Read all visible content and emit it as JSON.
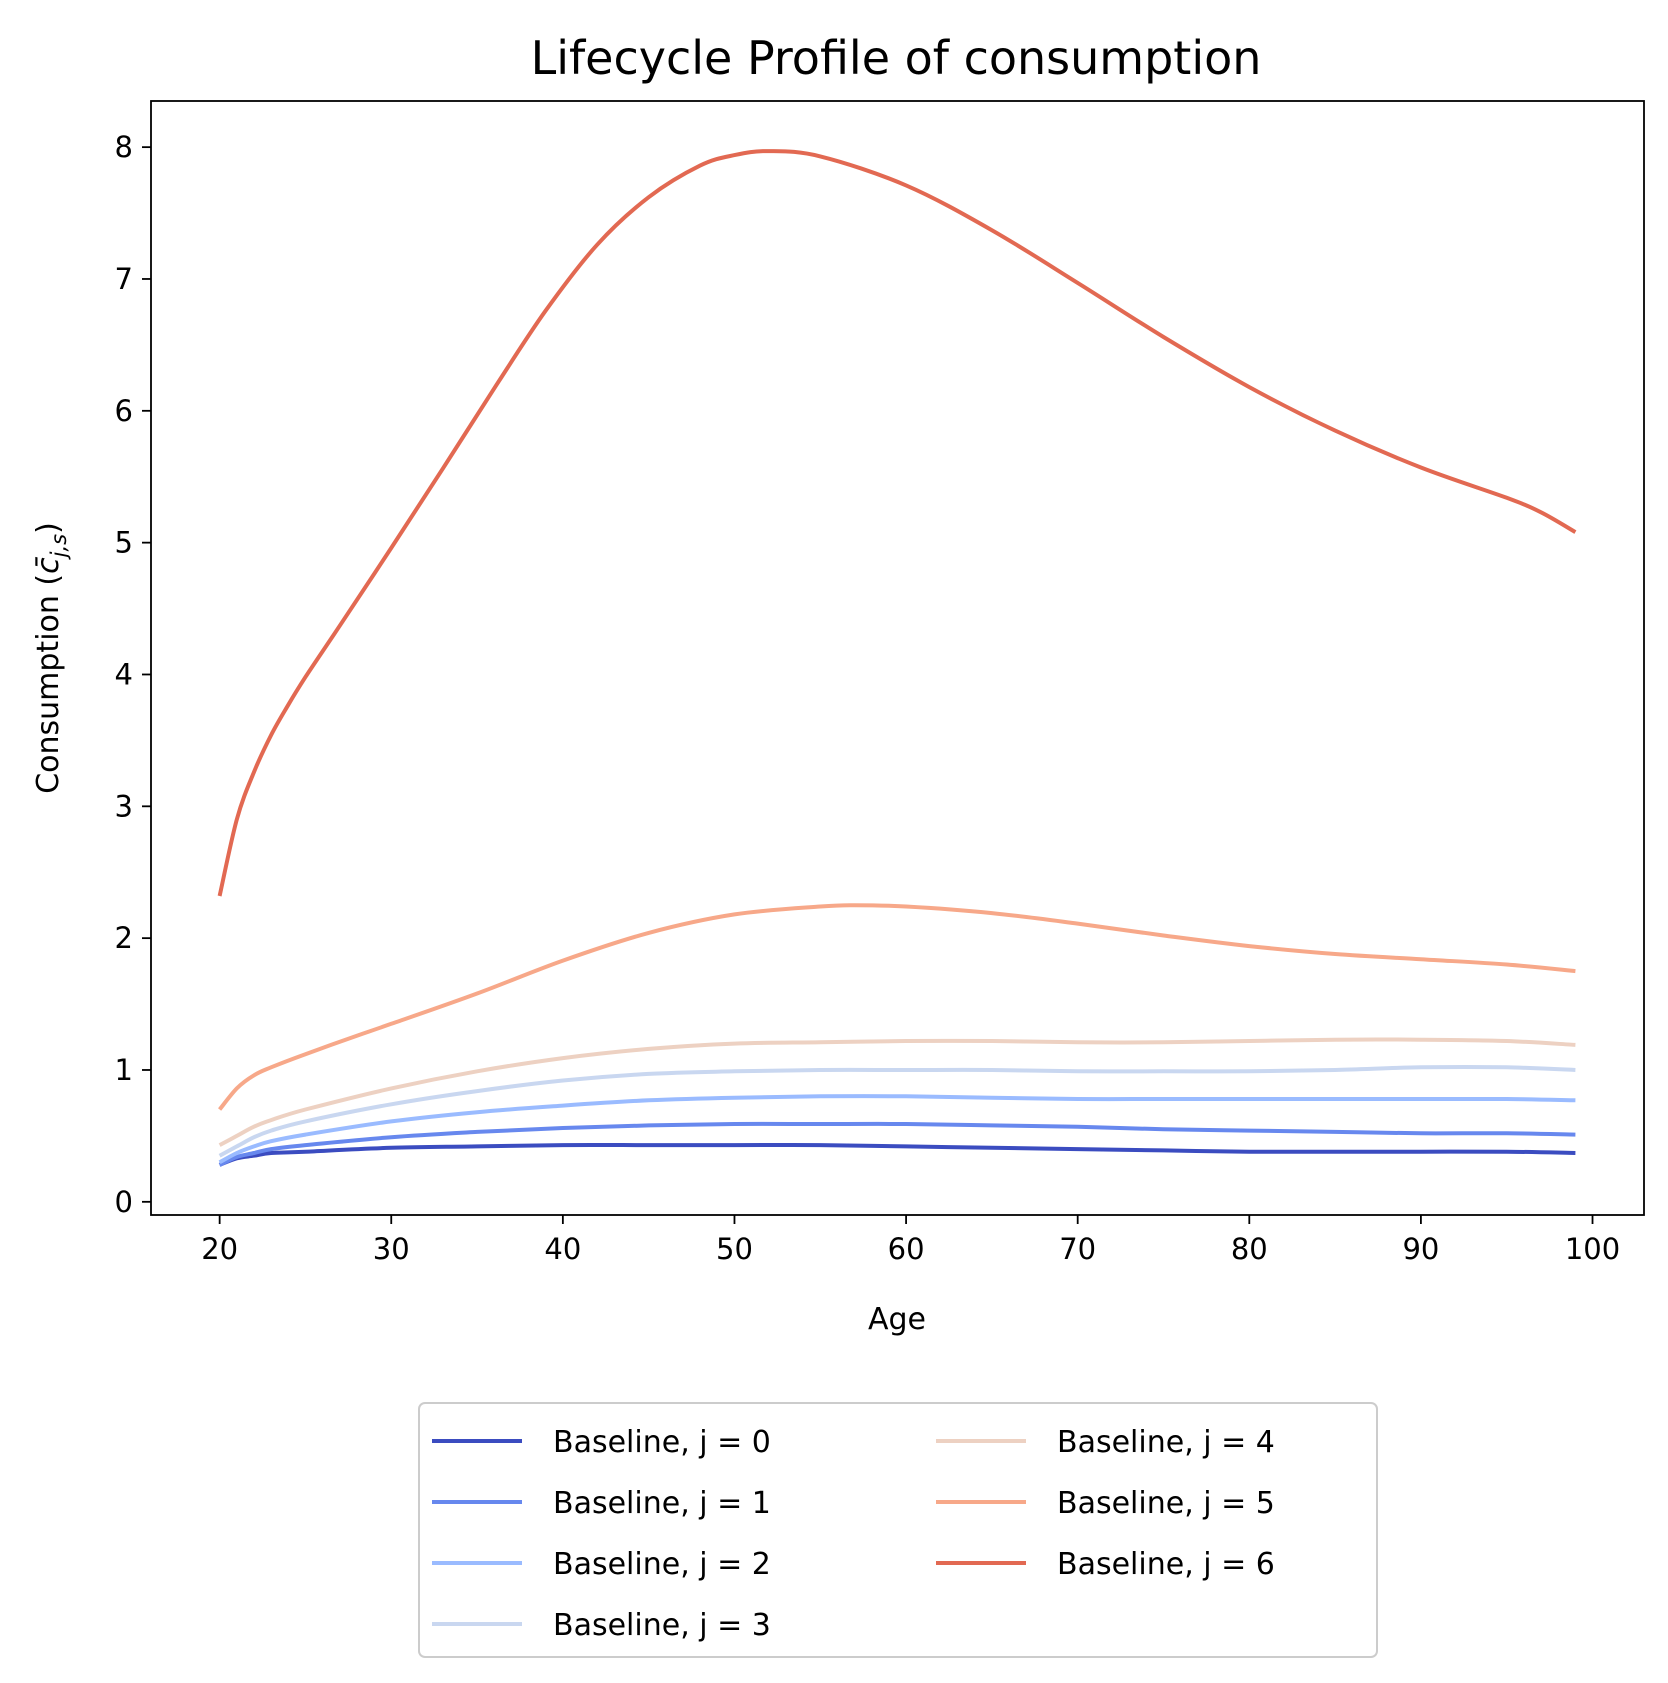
{
  "chart_data": {
    "type": "line",
    "title": "Lifecycle Profile of consumption",
    "xlabel": "Age",
    "ylabel": {
      "prefix": "Consumption (",
      "symbol": "c̄",
      "subscript": "j,s",
      "suffix": ")"
    },
    "xlim": [
      16,
      103
    ],
    "ylim": [
      -0.1,
      8.35
    ],
    "xticks": [
      20,
      30,
      40,
      50,
      60,
      70,
      80,
      90,
      100
    ],
    "yticks": [
      0,
      1,
      2,
      3,
      4,
      5,
      6,
      7,
      8
    ],
    "grid": false,
    "legend": {
      "placement": "below-center",
      "columns": 2
    },
    "series": [
      {
        "name": "Baseline, j = 0",
        "color": "#3b4cc0",
        "x": [
          20,
          21,
          22,
          23,
          25,
          30,
          35,
          40,
          45,
          50,
          55,
          60,
          65,
          70,
          75,
          80,
          85,
          90,
          95,
          99
        ],
        "y": [
          0.28,
          0.33,
          0.35,
          0.37,
          0.38,
          0.41,
          0.42,
          0.43,
          0.43,
          0.43,
          0.43,
          0.42,
          0.41,
          0.4,
          0.39,
          0.38,
          0.38,
          0.38,
          0.38,
          0.37
        ]
      },
      {
        "name": "Baseline, j = 1",
        "color": "#6788ee",
        "x": [
          20,
          21,
          22,
          23,
          25,
          30,
          35,
          40,
          45,
          50,
          55,
          60,
          65,
          70,
          75,
          80,
          85,
          90,
          95,
          99
        ],
        "y": [
          0.28,
          0.34,
          0.37,
          0.4,
          0.43,
          0.49,
          0.53,
          0.56,
          0.58,
          0.59,
          0.59,
          0.59,
          0.58,
          0.57,
          0.55,
          0.54,
          0.53,
          0.52,
          0.52,
          0.51
        ]
      },
      {
        "name": "Baseline, j = 2",
        "color": "#9abbff",
        "x": [
          20,
          21,
          22,
          23,
          25,
          30,
          35,
          40,
          45,
          50,
          55,
          60,
          65,
          70,
          75,
          80,
          85,
          90,
          95,
          99
        ],
        "y": [
          0.3,
          0.37,
          0.42,
          0.46,
          0.51,
          0.61,
          0.68,
          0.73,
          0.77,
          0.79,
          0.8,
          0.8,
          0.79,
          0.78,
          0.78,
          0.78,
          0.78,
          0.78,
          0.78,
          0.77
        ]
      },
      {
        "name": "Baseline, j = 3",
        "color": "#c9d7f0",
        "x": [
          20,
          21,
          22,
          23,
          25,
          30,
          35,
          40,
          45,
          50,
          55,
          60,
          65,
          70,
          75,
          80,
          85,
          90,
          95,
          99
        ],
        "y": [
          0.35,
          0.42,
          0.49,
          0.54,
          0.61,
          0.74,
          0.84,
          0.92,
          0.97,
          0.99,
          1.0,
          1.0,
          1.0,
          0.99,
          0.99,
          0.99,
          1.0,
          1.02,
          1.02,
          1.0
        ]
      },
      {
        "name": "Baseline, j = 4",
        "color": "#edd1c2",
        "x": [
          20,
          21,
          22,
          23,
          25,
          30,
          35,
          40,
          45,
          50,
          55,
          60,
          65,
          70,
          75,
          80,
          85,
          90,
          95,
          99
        ],
        "y": [
          0.43,
          0.5,
          0.57,
          0.62,
          0.7,
          0.86,
          0.99,
          1.09,
          1.16,
          1.2,
          1.21,
          1.22,
          1.22,
          1.21,
          1.21,
          1.22,
          1.23,
          1.23,
          1.22,
          1.19
        ]
      },
      {
        "name": "Baseline, j = 5",
        "color": "#f7a889",
        "x": [
          20,
          21,
          22,
          23,
          25,
          28,
          30,
          35,
          40,
          45,
          50,
          55,
          57,
          60,
          65,
          70,
          75,
          80,
          85,
          90,
          95,
          99
        ],
        "y": [
          0.7,
          0.86,
          0.96,
          1.02,
          1.12,
          1.26,
          1.35,
          1.58,
          1.83,
          2.04,
          2.18,
          2.24,
          2.25,
          2.24,
          2.19,
          2.11,
          2.02,
          1.94,
          1.88,
          1.84,
          1.8,
          1.75
        ]
      },
      {
        "name": "Baseline, j = 6",
        "color": "#e26952",
        "x": [
          20,
          21,
          22,
          23,
          24,
          25,
          27,
          30,
          33,
          36,
          39,
          42,
          45,
          48,
          50,
          52,
          55,
          60,
          65,
          70,
          75,
          80,
          85,
          90,
          95,
          97,
          99
        ],
        "y": [
          2.32,
          2.9,
          3.26,
          3.54,
          3.77,
          3.98,
          4.37,
          4.96,
          5.56,
          6.17,
          6.76,
          7.26,
          7.62,
          7.86,
          7.94,
          7.97,
          7.93,
          7.71,
          7.37,
          6.97,
          6.56,
          6.18,
          5.85,
          5.57,
          5.34,
          5.23,
          5.08
        ]
      }
    ]
  }
}
